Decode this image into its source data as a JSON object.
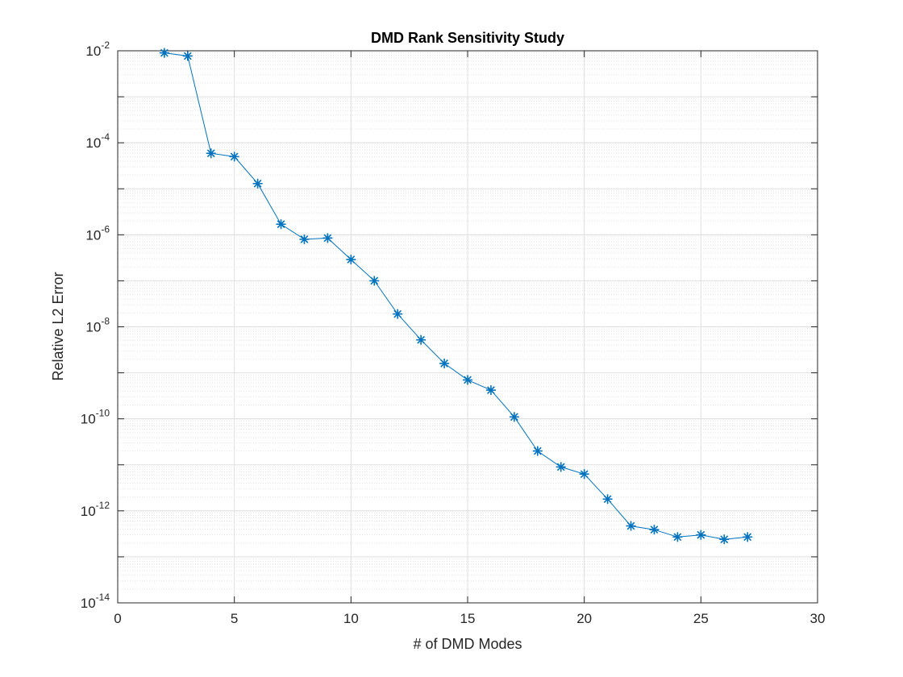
{
  "chart_data": {
    "type": "line",
    "title": "DMD Rank Sensitivity Study",
    "xlabel": "# of DMD Modes",
    "ylabel": "Relative L2 Error",
    "xlim": [
      0,
      30
    ],
    "ylim": [
      1e-14,
      0.01
    ],
    "yscale": "log",
    "grid": true,
    "minor_grid": true,
    "legend": "none",
    "marker": "asterisk",
    "x_ticks": [
      "0",
      "5",
      "10",
      "15",
      "20",
      "25",
      "30"
    ],
    "y_ticks": [
      {
        "base": "10",
        "exp": "-14"
      },
      {
        "base": "10",
        "exp": "-12"
      },
      {
        "base": "10",
        "exp": "-10"
      },
      {
        "base": "10",
        "exp": "-8"
      },
      {
        "base": "10",
        "exp": "-6"
      },
      {
        "base": "10",
        "exp": "-4"
      },
      {
        "base": "10",
        "exp": "-2"
      }
    ],
    "x": [
      2,
      3,
      4,
      5,
      6,
      7,
      8,
      9,
      10,
      11,
      12,
      13,
      14,
      15,
      16,
      17,
      18,
      19,
      20,
      21,
      22,
      23,
      24,
      25,
      26,
      27
    ],
    "y": [
      0.009,
      0.0077,
      5.9e-05,
      5e-05,
      1.3e-05,
      1.7e-06,
      8e-07,
      8.5e-07,
      2.9e-07,
      1e-07,
      1.9e-08,
      5.2e-09,
      1.6e-09,
      7e-10,
      4.2e-10,
      1.1e-10,
      2e-11,
      9e-12,
      6.3e-12,
      1.8e-12,
      4.7e-13,
      3.9e-13,
      2.7e-13,
      3e-13,
      2.4e-13,
      2.7e-13
    ],
    "colors": {
      "series": "#0072bd",
      "axes": "#262626",
      "grid": "#dfdfdf",
      "background": "#ffffff"
    }
  }
}
